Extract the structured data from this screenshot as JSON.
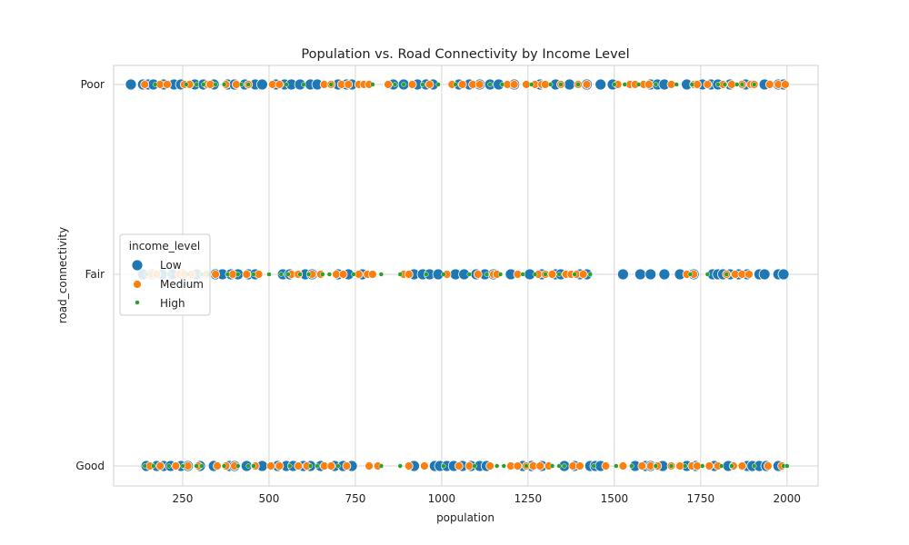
{
  "chart_data": {
    "type": "scatter",
    "title": "Population vs. Road Connectivity by Income Level",
    "xlabel": "population",
    "ylabel": "road_connectivity",
    "xlim": [
      50,
      2090
    ],
    "x_ticks": [
      250,
      500,
      750,
      1000,
      1250,
      1500,
      1750,
      2000
    ],
    "y_categories": [
      "Good",
      "Fair",
      "Poor"
    ],
    "grid": true,
    "legend": {
      "title": "income_level",
      "placement": "center-left",
      "entries": [
        "Low",
        "Medium",
        "High"
      ]
    },
    "colors": {
      "Low": "#1f77b4",
      "Medium": "#ff7f0e",
      "High": "#2ca02c"
    },
    "series": [
      {
        "name": "Low",
        "points": {
          "Poor": [
            100,
            135,
            150,
            165,
            195,
            225,
            245,
            285,
            310,
            340,
            380,
            400,
            430,
            460,
            480,
            520,
            545,
            565,
            590,
            620,
            640,
            700,
            725,
            740,
            860,
            890,
            930,
            955,
            975,
            1050,
            1080,
            1110,
            1140,
            1165,
            1210,
            1285,
            1330,
            1370,
            1420,
            1460,
            1495,
            1605,
            1625,
            1645,
            1710,
            1755,
            1780,
            1800,
            1835,
            1880,
            1935,
            1975,
            1990
          ],
          "Fair": [
            135,
            160,
            190,
            220,
            250,
            290,
            345,
            365,
            390,
            410,
            440,
            460,
            540,
            560,
            605,
            625,
            700,
            730,
            770,
            920,
            945,
            965,
            990,
            1040,
            1065,
            1100,
            1125,
            1150,
            1200,
            1255,
            1290,
            1330,
            1345,
            1400,
            1420,
            1525,
            1575,
            1605,
            1645,
            1690,
            1730,
            1785,
            1800,
            1815,
            1835,
            1860,
            1885,
            1920,
            1935,
            1975,
            1990
          ],
          "Good": [
            145,
            175,
            195,
            215,
            245,
            265,
            300,
            340,
            385,
            400,
            435,
            480,
            525,
            550,
            570,
            600,
            620,
            650,
            690,
            715,
            740,
            920,
            980,
            995,
            1015,
            1035,
            1060,
            1085,
            1110,
            1130,
            1235,
            1260,
            1290,
            1355,
            1385,
            1430,
            1445,
            1460,
            1560,
            1590,
            1605,
            1640,
            1710,
            1735,
            1790,
            1830,
            1885,
            1900,
            1920,
            1940,
            1975
          ]
        }
      },
      {
        "name": "Medium",
        "points": {
          "Poor": [
            140,
            185,
            205,
            255,
            270,
            320,
            330,
            375,
            405,
            440,
            510,
            530,
            660,
            680,
            710,
            730,
            760,
            775,
            790,
            845,
            915,
            965,
            1030,
            1060,
            1090,
            1110,
            1190,
            1210,
            1245,
            1270,
            1290,
            1300,
            1345,
            1395,
            1420,
            1510,
            1545,
            1560,
            1585,
            1600,
            1665,
            1730,
            1740,
            1770,
            1815,
            1840,
            1870,
            1895,
            1905,
            1950,
            1975,
            1995
          ],
          "Fair": [
            160,
            175,
            240,
            255,
            275,
            320,
            345,
            395,
            435,
            470,
            565,
            585,
            625,
            650,
            695,
            715,
            760,
            785,
            800,
            890,
            905,
            1015,
            1105,
            1150,
            1160,
            1220,
            1280,
            1300,
            1320,
            1360,
            1375,
            1390,
            1410,
            1710,
            1730,
            1825,
            1850,
            1870,
            1890
          ],
          "Good": [
            155,
            185,
            230,
            265,
            295,
            350,
            375,
            400,
            460,
            505,
            530,
            585,
            610,
            660,
            680,
            725,
            790,
            815,
            905,
            950,
            1050,
            1080,
            1140,
            1200,
            1220,
            1245,
            1265,
            1285,
            1310,
            1380,
            1400,
            1475,
            1525,
            1580,
            1605,
            1625,
            1665,
            1690,
            1725,
            1740,
            1775,
            1800,
            1845,
            1870,
            1945,
            1985
          ]
        }
      },
      {
        "name": "High",
        "points": {
          "Poor": [
            170,
            260,
            290,
            310,
            345,
            370,
            420,
            440,
            550,
            600,
            680,
            800,
            865,
            890,
            945,
            990,
            1040,
            1140,
            1175,
            1260,
            1315,
            1345,
            1395,
            1500,
            1530,
            1570,
            1620,
            1680,
            1725,
            1800,
            1820,
            1855,
            1870,
            1905
          ],
          "Fair": [
            145,
            210,
            265,
            305,
            325,
            380,
            410,
            455,
            500,
            535,
            555,
            590,
            615,
            655,
            675,
            745,
            825,
            880,
            955,
            1005,
            1080,
            1130,
            1170,
            1235,
            1270,
            1300,
            1340,
            1385,
            1430,
            1720,
            1770,
            1825
          ],
          "Good": [
            140,
            165,
            210,
            250,
            290,
            305,
            370,
            410,
            440,
            455,
            560,
            620,
            640,
            700,
            825,
            880,
            1005,
            1095,
            1160,
            1180,
            1245,
            1320,
            1340,
            1355,
            1440,
            1505,
            1550,
            1620,
            1665,
            1705,
            1755,
            1810,
            1840,
            1905,
            1990,
            2000
          ]
        }
      }
    ]
  }
}
